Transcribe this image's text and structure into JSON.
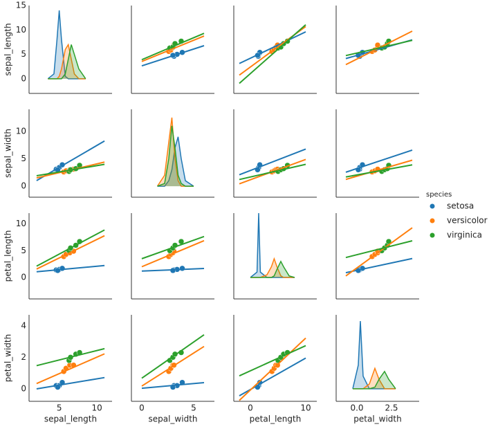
{
  "chart_data": {
    "type": "pairplot",
    "legend_title": "species",
    "variables": [
      {
        "label": "sepal_length",
        "xlim": [
          1,
          12
        ],
        "xticks": [
          5,
          10
        ],
        "ylim": [
          -3,
          15
        ],
        "yticks": [
          0,
          5,
          10,
          15
        ],
        "fit_x": [
          2,
          11
        ],
        "kde_x": [
          3.5,
          4.3,
          4.7,
          5.0,
          5.3,
          5.8,
          6.2,
          6.6,
          7.0,
          7.6,
          8.5
        ]
      },
      {
        "label": "sepal_width",
        "xlim": [
          -1,
          7
        ],
        "xticks": [
          0,
          5
        ],
        "ylim": [
          -2,
          14
        ],
        "yticks": [
          0,
          5,
          10
        ],
        "fit_x": [
          0,
          6
        ],
        "kde_x": [
          1.5,
          2.2,
          2.6,
          2.9,
          3.2,
          3.5,
          3.8,
          4.2,
          5.0
        ]
      },
      {
        "label": "petal_length",
        "xlim": [
          -3,
          12
        ],
        "xticks": [
          0,
          10
        ],
        "ylim": [
          -4,
          12
        ],
        "yticks": [
          0,
          5,
          10
        ],
        "fit_x": [
          -2,
          10
        ],
        "kde_x": [
          0,
          1.2,
          1.5,
          1.8,
          3,
          3.8,
          4.3,
          4.8,
          5.5,
          6,
          7,
          8
        ]
      },
      {
        "label": "petal_width",
        "xlim": [
          -1.5,
          4.5
        ],
        "xticks": [
          {
            "value": 0,
            "label": "0.0"
          },
          {
            "value": 2.5,
            "label": "2.5"
          }
        ],
        "ylim": [
          -0.8,
          4.7
        ],
        "yticks": [
          0,
          2,
          4
        ],
        "fit_x": [
          -0.8,
          4
        ],
        "kde_x": [
          -0.3,
          0.1,
          0.25,
          0.45,
          0.9,
          1.3,
          1.6,
          2.0,
          2.3,
          2.8
        ]
      }
    ],
    "series": [
      {
        "name": "setosa",
        "color": "#1f77b4",
        "values": [
          [
            4.6,
            3.1,
            1.4,
            0.2
          ],
          [
            5.0,
            3.4,
            1.5,
            0.2
          ],
          [
            5.4,
            3.9,
            1.7,
            0.4
          ],
          [
            4.8,
            3.0,
            1.3,
            0.1
          ]
        ],
        "kde": [
          [
            0,
            1,
            8,
            14,
            8,
            0.5,
            0,
            0,
            0,
            0,
            0
          ],
          [
            0,
            0,
            1,
            3,
            7,
            9,
            5,
            1,
            0
          ],
          [
            0,
            1,
            12,
            1,
            0,
            0,
            0,
            0,
            0,
            0,
            0,
            0
          ],
          [
            0,
            1.5,
            4.3,
            0.8,
            0,
            0,
            0,
            0,
            0,
            0
          ]
        ],
        "fits": [
          [
            null,
            [
              2.64,
              6.78
            ],
            [
              3.13,
              9.61
            ],
            [
              4.14,
              7.98
            ]
          ],
          [
            [
              1.03,
              8.23
            ],
            null,
            [
              2.08,
              6.76
            ],
            [
              2.55,
              6.58
            ]
          ],
          [
            [
              1.06,
              2.23
            ],
            [
              1.19,
              1.67
            ],
            null,
            [
              0.89,
              3.53
            ]
          ],
          [
            [
              -0.01,
              0.71
            ],
            [
              0.03,
              0.39
            ],
            [
              -0.45,
              1.95
            ],
            null
          ]
        ]
      },
      {
        "name": "versicolor",
        "color": "#ff7f0e",
        "values": [
          [
            5.6,
            2.6,
            3.9,
            1.1
          ],
          [
            5.9,
            2.8,
            4.3,
            1.3
          ],
          [
            6.4,
            3.0,
            4.6,
            1.5
          ],
          [
            6.9,
            3.1,
            4.9,
            1.5
          ]
        ],
        "kde": [
          [
            0,
            0,
            0,
            0.5,
            2,
            6,
            7,
            4,
            1,
            0,
            0
          ],
          [
            0,
            2,
            8,
            12.5,
            5,
            1,
            0,
            0,
            0
          ],
          [
            0,
            0,
            0,
            0,
            0.5,
            2,
            3.5,
            2,
            0.3,
            0,
            0,
            0
          ],
          [
            0,
            0,
            0,
            0,
            0.3,
            1.3,
            0.6,
            0,
            0,
            0
          ]
        ],
        "fits": [
          [
            null,
            [
              3.54,
              8.76
            ],
            [
              0.75,
              10.71
            ],
            [
              2.9,
              9.76
            ]
          ],
          [
            [
              1.51,
              4.39
            ],
            null,
            [
              0.44,
              4.88
            ],
            [
              1.24,
              4.74
            ]
          ],
          [
            [
              1.57,
              7.78
            ],
            [
              2.0,
              6.86
            ],
            null,
            [
              0.28,
              9.26
            ]
          ],
          [
            [
              0.33,
              2.22
            ],
            [
              0.17,
              2.69
            ],
            [
              -0.74,
              3.22
            ],
            null
          ]
        ]
      },
      {
        "name": "virginica",
        "color": "#2ca02c",
        "values": [
          [
            6.3,
            2.7,
            5.0,
            1.8
          ],
          [
            6.5,
            3.0,
            5.5,
            2.0
          ],
          [
            7.2,
            3.2,
            6.0,
            2.2
          ],
          [
            7.7,
            3.8,
            6.7,
            2.3
          ]
        ],
        "kde": [
          [
            0,
            0,
            0,
            0,
            0,
            1,
            4,
            7,
            5,
            2,
            0
          ],
          [
            0,
            0.5,
            5,
            11,
            7,
            2,
            0.5,
            0,
            0
          ],
          [
            0,
            0,
            0,
            0,
            0,
            0,
            0.3,
            1.5,
            3,
            2,
            0.3,
            0
          ],
          [
            0,
            0,
            0,
            0,
            0,
            0.1,
            0.6,
            1.1,
            0.6,
            0
          ]
        ],
        "fits": [
          [
            null,
            [
              3.91,
              9.31
            ],
            [
              -0.94,
              11.06
            ],
            [
              4.75,
              7.87
            ]
          ],
          [
            [
              1.91,
              3.98
            ],
            null,
            [
              1.22,
              3.98
            ],
            [
              1.68,
              3.89
            ]
          ],
          [
            [
              2.11,
              8.86
            ],
            [
              3.5,
              7.64
            ],
            null,
            [
              3.72,
              6.84
            ]
          ],
          [
            [
              1.47,
              2.55
            ],
            [
              0.67,
              3.43
            ],
            [
              0.82,
              2.74
            ],
            null
          ]
        ]
      }
    ]
  }
}
